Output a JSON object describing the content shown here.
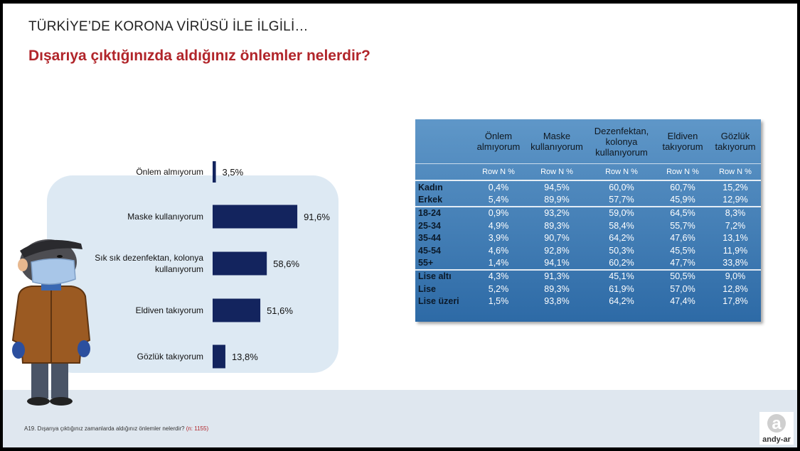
{
  "header": {
    "title": "TÜRKİYE’DE KORONA VİRÜSÜ İLE İLGİLİ…",
    "question": "Dışarıya çıktığınızda aldığınız önlemler nelerdir?"
  },
  "footnote": {
    "text": "A19. Dışarıya çıktığınız zamanlarda aldığınız önlemler nelerdir?",
    "n": "(n: 1155)"
  },
  "logo": {
    "text": "andy-ar",
    "letter": "a"
  },
  "colors": {
    "bar": "#13245e",
    "accent_red": "#b1252a",
    "panel": "#dde9f3",
    "table": "#3b7bb6"
  },
  "chart_data": {
    "type": "bar",
    "orientation": "horizontal",
    "categories": [
      [
        "Önlem almıyorum"
      ],
      [
        "Maske kullanıyorum"
      ],
      [
        "Sık sık dezenfektan, kolonya",
        "kullanıyorum"
      ],
      [
        "Eldiven takıyorum"
      ],
      [
        "Gözlük takıyorum"
      ]
    ],
    "values": [
      3.5,
      91.6,
      58.6,
      51.6,
      13.8
    ],
    "value_labels": [
      "3,5%",
      "91,6%",
      "58,6%",
      "51,6%",
      "13,8%"
    ],
    "xlim": [
      0,
      100
    ],
    "grid": false,
    "legend": "none"
  },
  "table": {
    "columns": [
      [
        "Önlem",
        "almıyorum"
      ],
      [
        "Maske",
        "kullanıyorum"
      ],
      [
        "Dezenfektan,",
        "kolonya",
        "kullanıyorum"
      ],
      [
        "Eldiven",
        "takıyorum"
      ],
      [
        "Gözlük",
        "takıyorum"
      ]
    ],
    "subheader": "Row N %",
    "rows": [
      {
        "label": "Kadın",
        "values": [
          "0,4%",
          "94,5%",
          "60,0%",
          "60,7%",
          "15,2%"
        ],
        "group_start": true
      },
      {
        "label": "Erkek",
        "values": [
          "5,4%",
          "89,9%",
          "57,7%",
          "45,9%",
          "12,9%"
        ],
        "group_start": false
      },
      {
        "label": "18-24",
        "values": [
          "0,9%",
          "93,2%",
          "59,0%",
          "64,5%",
          "8,3%"
        ],
        "group_start": true
      },
      {
        "label": "25-34",
        "values": [
          "4,9%",
          "89,3%",
          "58,4%",
          "55,7%",
          "7,2%"
        ],
        "group_start": false
      },
      {
        "label": "35-44",
        "values": [
          "3,9%",
          "90,7%",
          "64,2%",
          "47,6%",
          "13,1%"
        ],
        "group_start": false
      },
      {
        "label": "45-54",
        "values": [
          "4,6%",
          "92,8%",
          "50,3%",
          "45,5%",
          "11,9%"
        ],
        "group_start": false
      },
      {
        "label": "55+",
        "values": [
          "1,4%",
          "94,1%",
          "60,2%",
          "47,7%",
          "33,8%"
        ],
        "group_start": false
      },
      {
        "label": "Lise altı",
        "values": [
          "4,3%",
          "91,3%",
          "45,1%",
          "50,5%",
          "9,0%"
        ],
        "group_start": true
      },
      {
        "label": "Lise",
        "values": [
          "5,2%",
          "89,3%",
          "61,9%",
          "57,0%",
          "12,8%"
        ],
        "group_start": false
      },
      {
        "label": "Lise üzeri",
        "values": [
          "1,5%",
          "93,8%",
          "64,2%",
          "47,4%",
          "17,8%"
        ],
        "group_start": false
      }
    ]
  }
}
